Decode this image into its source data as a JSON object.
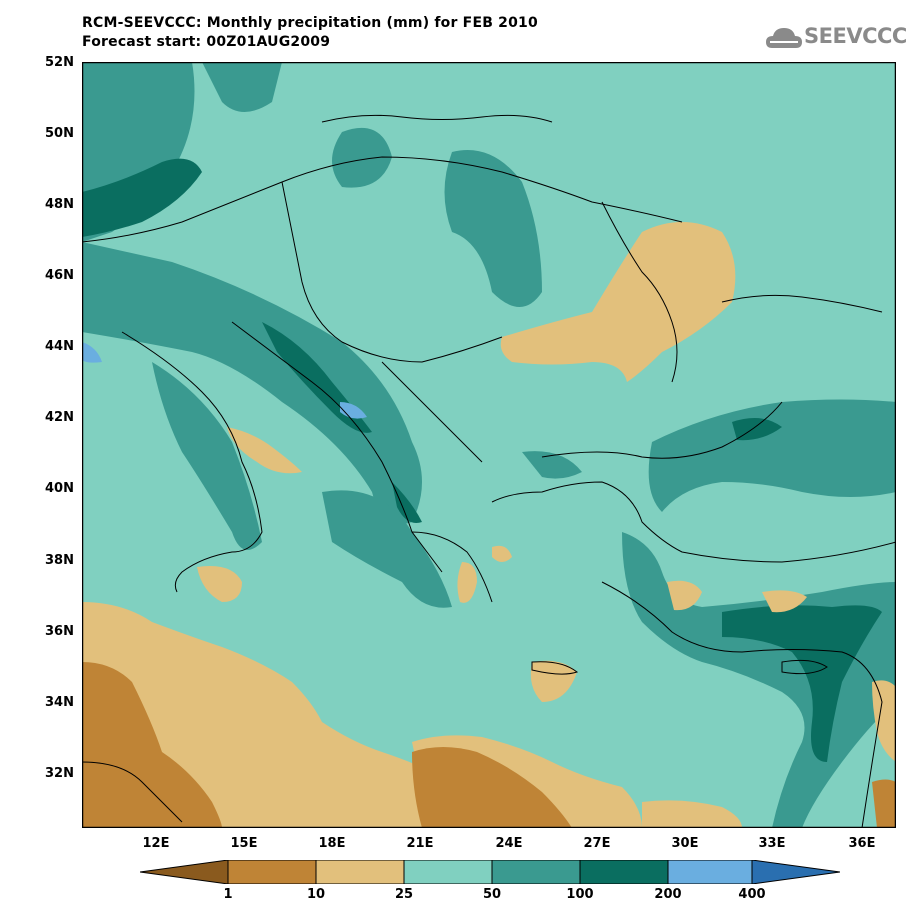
{
  "header": {
    "title_line1": "RCM-SEEVCCC: Monthly precipitation (mm) for FEB 2010",
    "title_line2": "Forecast start: 00Z01AUG2009"
  },
  "logo": {
    "text": "SEEVCCC",
    "icon": "cloud-icon"
  },
  "axes": {
    "lat_labels": [
      "52N",
      "50N",
      "48N",
      "46N",
      "44N",
      "42N",
      "40N",
      "38N",
      "36N",
      "34N",
      "32N"
    ],
    "lon_labels": [
      "12E",
      "15E",
      "18E",
      "21E",
      "24E",
      "27E",
      "30E",
      "33E",
      "36E"
    ]
  },
  "legend": {
    "labels": [
      "1",
      "10",
      "25",
      "50",
      "100",
      "200",
      "400"
    ],
    "colors": [
      "#8a5a1e",
      "#bf8436",
      "#e2c07c",
      "#80d0c0",
      "#3a9a90",
      "#0a6e60",
      "#6aaee0",
      "#2a6fb0"
    ]
  }
}
